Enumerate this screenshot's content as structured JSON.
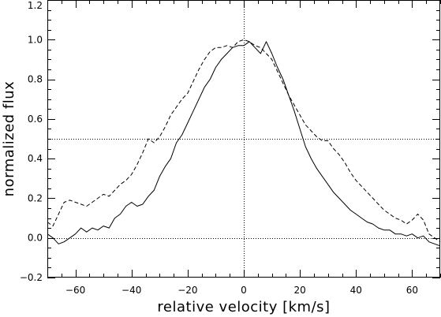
{
  "chart_data": {
    "type": "line",
    "xlabel": "relative velocity [km/s]",
    "ylabel": "normalized flux",
    "xlim": [
      -70,
      70
    ],
    "ylim": [
      -0.2,
      1.2
    ],
    "x_ticks": [
      -60,
      -40,
      -20,
      0,
      20,
      40,
      60
    ],
    "x_tick_labels": [
      "−60",
      "−40",
      "−20",
      "0",
      "20",
      "40",
      "60"
    ],
    "y_ticks": [
      -0.2,
      0.0,
      0.2,
      0.4,
      0.6,
      0.8,
      1.0,
      1.2
    ],
    "y_tick_labels": [
      "−0.2",
      "0.0",
      "0.2",
      "0.4",
      "0.6",
      "0.8",
      "1.0",
      "1.2"
    ],
    "grid": false,
    "legend": "none",
    "reference_lines": [
      {
        "orientation": "horizontal",
        "value": 0.5,
        "style": "dotted"
      },
      {
        "orientation": "horizontal",
        "value": 0.0,
        "style": "dotted"
      },
      {
        "orientation": "vertical",
        "value": 0,
        "style": "dotted"
      }
    ],
    "series": [
      {
        "style": "solid",
        "color": "#000000",
        "x": [
          -70,
          -68,
          -66,
          -64,
          -62,
          -60,
          -58,
          -56,
          -54,
          -52,
          -50,
          -48,
          -46,
          -44,
          -42,
          -40,
          -38,
          -36,
          -34,
          -32,
          -30,
          -28,
          -26,
          -24,
          -22,
          -20,
          -18,
          -16,
          -14,
          -12,
          -10,
          -8,
          -6,
          -4,
          -2,
          0,
          2,
          4,
          6,
          8,
          10,
          12,
          14,
          16,
          18,
          20,
          22,
          24,
          26,
          28,
          30,
          32,
          34,
          36,
          38,
          40,
          42,
          44,
          46,
          48,
          50,
          52,
          54,
          56,
          58,
          60,
          62,
          64,
          66,
          68,
          70
        ],
        "y": [
          0.02,
          0.0,
          -0.03,
          -0.02,
          0.0,
          0.02,
          0.05,
          0.03,
          0.05,
          0.04,
          0.06,
          0.05,
          0.1,
          0.12,
          0.16,
          0.18,
          0.16,
          0.17,
          0.21,
          0.24,
          0.31,
          0.36,
          0.4,
          0.48,
          0.52,
          0.58,
          0.64,
          0.7,
          0.76,
          0.8,
          0.86,
          0.9,
          0.93,
          0.96,
          0.97,
          0.97,
          0.99,
          0.96,
          0.93,
          0.99,
          0.93,
          0.86,
          0.8,
          0.72,
          0.64,
          0.55,
          0.46,
          0.4,
          0.35,
          0.31,
          0.27,
          0.23,
          0.2,
          0.17,
          0.14,
          0.12,
          0.1,
          0.08,
          0.07,
          0.05,
          0.04,
          0.04,
          0.02,
          0.02,
          0.01,
          0.02,
          0.0,
          0.01,
          -0.02,
          -0.03,
          -0.04
        ]
      },
      {
        "style": "dashed",
        "color": "#000000",
        "x": [
          -70,
          -68,
          -66,
          -64,
          -62,
          -60,
          -58,
          -56,
          -54,
          -52,
          -50,
          -48,
          -46,
          -44,
          -42,
          -40,
          -38,
          -36,
          -34,
          -32,
          -30,
          -28,
          -26,
          -24,
          -22,
          -20,
          -18,
          -16,
          -14,
          -12,
          -10,
          -8,
          -6,
          -4,
          -2,
          0,
          2,
          4,
          6,
          8,
          10,
          12,
          14,
          16,
          18,
          20,
          22,
          24,
          26,
          28,
          30,
          32,
          34,
          36,
          38,
          40,
          42,
          44,
          46,
          48,
          50,
          52,
          54,
          56,
          58,
          60,
          62,
          64,
          66,
          68,
          70
        ],
        "y": [
          0.08,
          0.06,
          0.12,
          0.18,
          0.19,
          0.18,
          0.17,
          0.16,
          0.18,
          0.2,
          0.22,
          0.21,
          0.24,
          0.27,
          0.29,
          0.32,
          0.37,
          0.43,
          0.5,
          0.48,
          0.51,
          0.56,
          0.62,
          0.66,
          0.7,
          0.73,
          0.79,
          0.85,
          0.9,
          0.94,
          0.96,
          0.96,
          0.97,
          0.96,
          0.99,
          1.0,
          0.99,
          0.97,
          0.96,
          0.93,
          0.9,
          0.84,
          0.78,
          0.72,
          0.67,
          0.62,
          0.57,
          0.54,
          0.51,
          0.49,
          0.49,
          0.45,
          0.42,
          0.38,
          0.33,
          0.29,
          0.26,
          0.23,
          0.2,
          0.17,
          0.14,
          0.12,
          0.1,
          0.09,
          0.07,
          0.09,
          0.12,
          0.09,
          0.02,
          0.0,
          -0.02
        ]
      }
    ]
  }
}
